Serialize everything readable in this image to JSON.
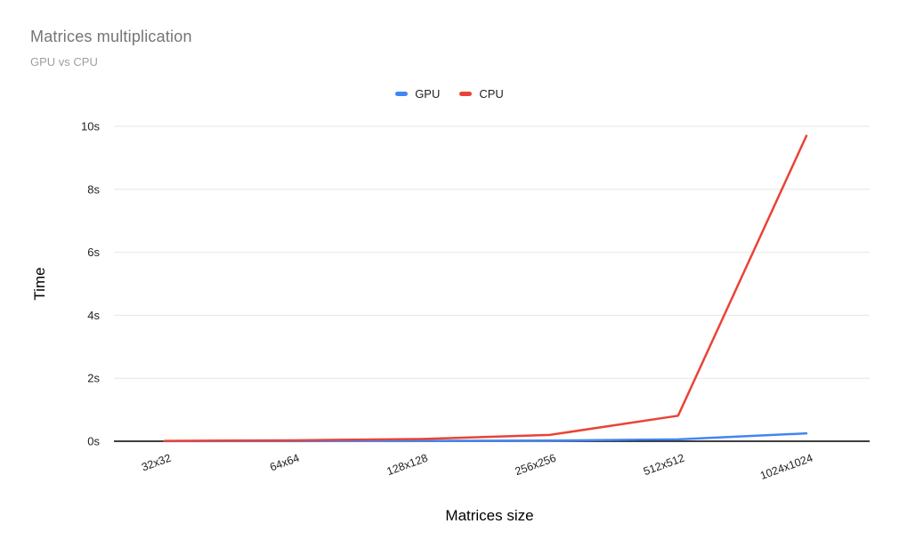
{
  "chart_data": {
    "type": "line",
    "title": "Matrices multiplication",
    "subtitle": "GPU vs CPU",
    "xlabel": "Matrices size",
    "ylabel": "Time",
    "categories": [
      "32x32",
      "64x64",
      "128x128",
      "256x256",
      "512x512",
      "1024x1024"
    ],
    "series": [
      {
        "name": "GPU",
        "color": "#4285F4",
        "values": [
          0.003,
          0.005,
          0.01,
          0.02,
          0.06,
          0.25
        ]
      },
      {
        "name": "CPU",
        "color": "#EA4335",
        "values": [
          0.01,
          0.03,
          0.07,
          0.2,
          0.81,
          9.7
        ]
      }
    ],
    "ylim": [
      0,
      10
    ],
    "y_ticks": [
      0,
      2,
      4,
      6,
      8,
      10
    ],
    "y_tick_suffix": "s",
    "grid": true,
    "legend_position": "top-center",
    "colors": {
      "title": "#757575",
      "subtitle": "#9e9e9e",
      "gridline": "#e6e6e6",
      "axis_line": "#000000",
      "tick_label": "#222222",
      "axis_title": "#000000"
    }
  }
}
